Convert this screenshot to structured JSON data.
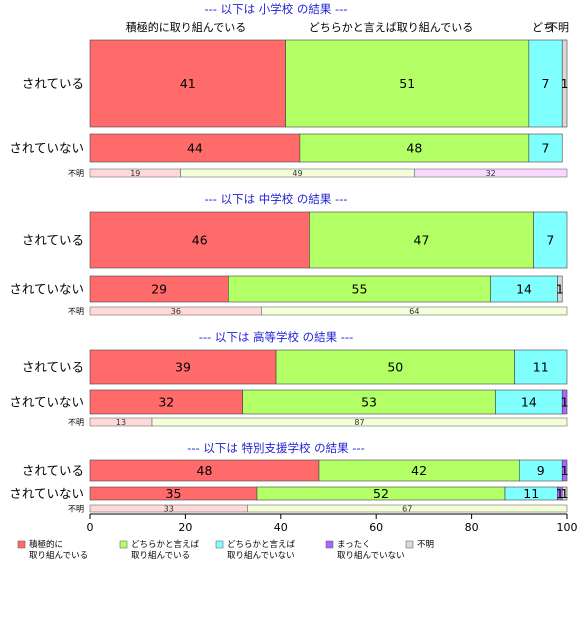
{
  "chart_data": {
    "type": "bar",
    "orientation": "horizontal",
    "stacked": "percent",
    "xlim": [
      0,
      100
    ],
    "x_ticks": [
      0,
      20,
      40,
      60,
      80,
      100
    ],
    "top_labels": [
      "積極的に取り組んでいる",
      "どちらかと言えば取り組んでいる",
      "どち",
      "不明"
    ],
    "legend": {
      "placement": "bottom",
      "entries": [
        {
          "label": "積極的に\n取り組んでいる",
          "color": "#ff6b6b"
        },
        {
          "label": "どちらかと言えば\n取り組んでいる",
          "color": "#b3ff66"
        },
        {
          "label": "どちらかと言えば\n取り組んでいない",
          "color": "#80ffff"
        },
        {
          "label": "まったく\n取り組んでいない",
          "color": "#aa66ff"
        },
        {
          "label": "不明",
          "color": "#d9d9d9"
        }
      ]
    },
    "unknown_colors": [
      "#ffd9d9",
      "#f4ffd9",
      "#f9d9ff"
    ],
    "panels": [
      {
        "title": "--- 以下は 小学校 の結果 ---",
        "rows": [
          {
            "label": "されている",
            "values": [
              41,
              51,
              7,
              0,
              1
            ],
            "labels": [
              "41",
              "51",
              "7",
              "",
              "1"
            ]
          },
          {
            "label": "されていない",
            "values": [
              44,
              48,
              7,
              0,
              0
            ],
            "labels": [
              "44",
              "48",
              "7",
              "",
              ""
            ]
          }
        ],
        "unknown": {
          "label": "不明",
          "values": [
            19,
            49,
            32
          ],
          "labels": [
            "19",
            "49",
            "32"
          ]
        }
      },
      {
        "title": "--- 以下は 中学校 の結果 ---",
        "rows": [
          {
            "label": "されている",
            "values": [
              46,
              47,
              7,
              0,
              0
            ],
            "labels": [
              "46",
              "47",
              "7",
              "",
              ""
            ]
          },
          {
            "label": "されていない",
            "values": [
              29,
              55,
              14,
              0,
              1
            ],
            "labels": [
              "29",
              "55",
              "14",
              "",
              "1"
            ]
          }
        ],
        "unknown": {
          "label": "不明",
          "values": [
            36,
            64
          ],
          "labels": [
            "36",
            "64"
          ]
        }
      },
      {
        "title": "--- 以下は 高等学校 の結果 ---",
        "rows": [
          {
            "label": "されている",
            "values": [
              39,
              50,
              11,
              0,
              0
            ],
            "labels": [
              "39",
              "50",
              "11",
              "",
              ""
            ]
          },
          {
            "label": "されていない",
            "values": [
              32,
              53,
              14,
              1,
              0
            ],
            "labels": [
              "32",
              "53",
              "14",
              "1",
              ""
            ]
          }
        ],
        "unknown": {
          "label": "不明",
          "values": [
            13,
            87
          ],
          "labels": [
            "13",
            "87"
          ]
        }
      },
      {
        "title": "--- 以下は 特別支援学校 の結果 ---",
        "rows": [
          {
            "label": "されている",
            "values": [
              48,
              42,
              9,
              1,
              0
            ],
            "labels": [
              "48",
              "42",
              "9",
              "1",
              ""
            ]
          },
          {
            "label": "されていない",
            "values": [
              35,
              52,
              11,
              1,
              1
            ],
            "labels": [
              "35",
              "52",
              "11",
              "1",
              "1"
            ]
          }
        ],
        "unknown": {
          "label": "不明",
          "values": [
            33,
            67
          ],
          "labels": [
            "33",
            "67"
          ]
        }
      }
    ]
  }
}
